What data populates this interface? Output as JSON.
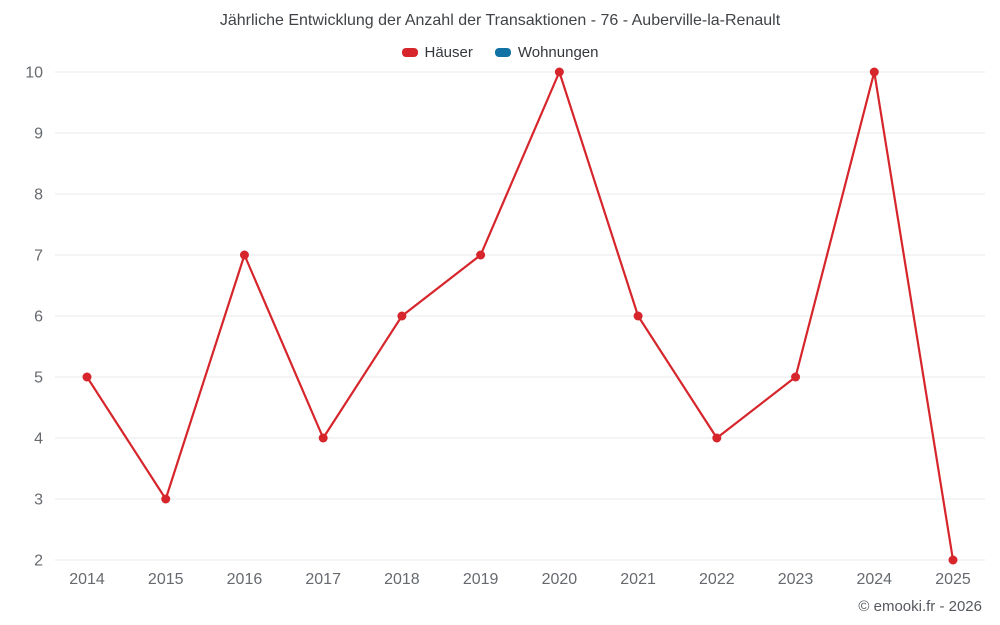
{
  "title": "Jährliche Entwicklung der Anzahl der Transaktionen - 76 - Auberville-la-Renault",
  "legend": {
    "items": [
      {
        "label": "Häuser",
        "color": "#d6262c"
      },
      {
        "label": "Wohnungen",
        "color": "#1172a6"
      }
    ]
  },
  "footer": {
    "credit": "© emooki.fr - 2026"
  },
  "chart_data": {
    "type": "line",
    "title": "Jährliche Entwicklung der Anzahl der Transaktionen - 76 - Auberville-la-Renault",
    "categories": [
      "2014",
      "2015",
      "2016",
      "2017",
      "2018",
      "2019",
      "2020",
      "2021",
      "2022",
      "2023",
      "2024",
      "2025"
    ],
    "series": [
      {
        "name": "Häuser",
        "color": "#d6262c",
        "values": [
          5,
          3,
          7,
          4,
          6,
          7,
          10,
          6,
          4,
          5,
          10,
          2
        ]
      },
      {
        "name": "Wohnungen",
        "color": "#1172a6",
        "values": []
      }
    ],
    "xlabel": "",
    "ylabel": "",
    "ylim": [
      2,
      10
    ],
    "ytick_step": 1,
    "grid": "horizontal",
    "legend_position": "top",
    "colors": {
      "gridline": "#e8e8e8",
      "tick_label": "#666a6e",
      "marker_radius": 4.5,
      "line_width": 2.2
    }
  }
}
